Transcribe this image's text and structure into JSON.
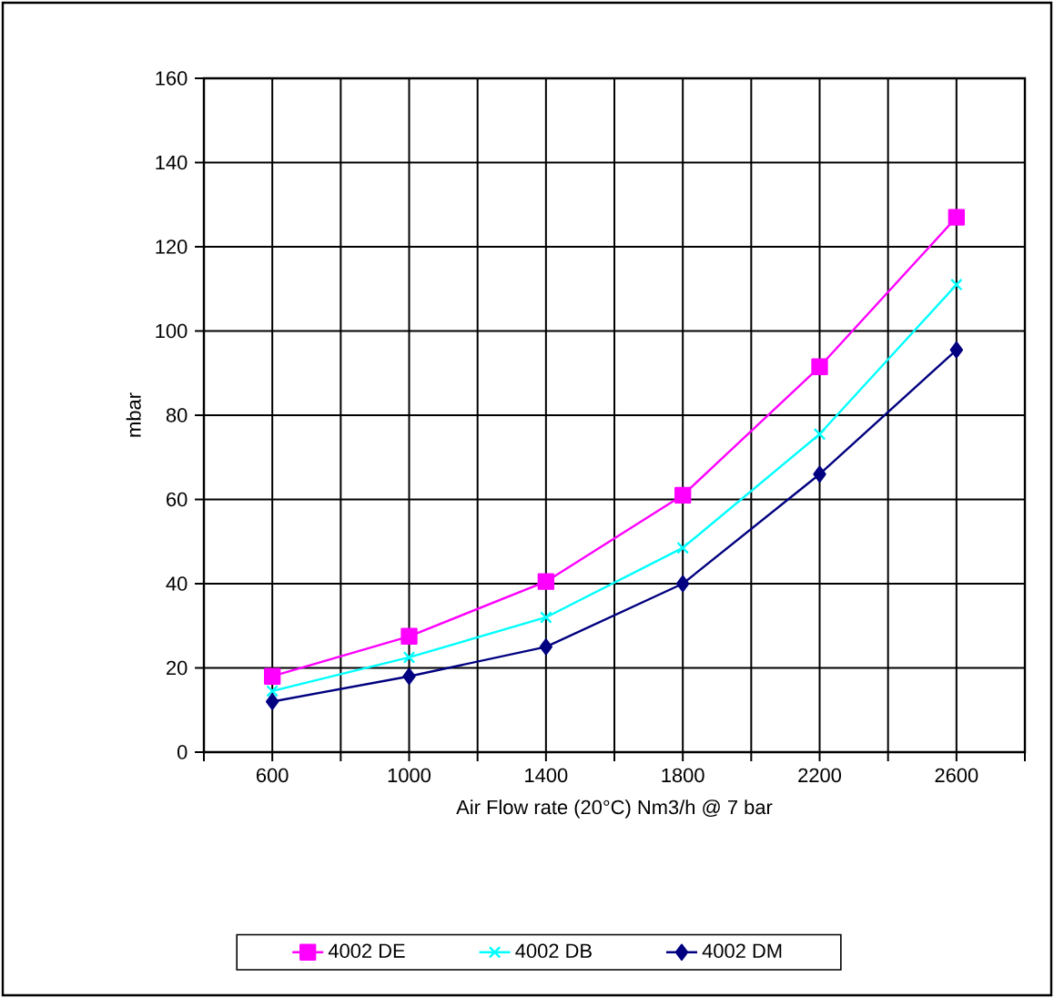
{
  "chart_data": {
    "type": "line",
    "xlabel": "Air Flow rate (20°C) Nm3/h @ 7 bar",
    "ylabel": "mbar",
    "x": [
      600,
      1000,
      1400,
      1800,
      2200,
      2600
    ],
    "series": [
      {
        "name": "4002 DE",
        "color": "#ff00ff",
        "marker": "square",
        "values": [
          18,
          27.5,
          40.5,
          61,
          91.5,
          127
        ]
      },
      {
        "name": "4002 DB",
        "color": "#00ffff",
        "marker": "cross",
        "values": [
          14.5,
          22.5,
          32,
          48.5,
          75.5,
          111
        ]
      },
      {
        "name": "4002 DM",
        "color": "#000080",
        "marker": "diamond",
        "values": [
          12,
          18,
          25,
          40,
          66,
          95.5
        ]
      }
    ],
    "xlim": [
      400,
      2800
    ],
    "xticks": [
      {
        "value": 400,
        "label": null
      },
      600,
      {
        "value": 800,
        "label": null
      },
      1000,
      {
        "value": 1200,
        "label": null
      },
      1400,
      {
        "value": 1600,
        "label": null
      },
      1800,
      {
        "value": 2000,
        "label": null
      },
      2200,
      {
        "value": 2400,
        "label": null
      },
      2600,
      {
        "value": 2800,
        "label": null
      }
    ],
    "ylim": [
      0,
      160
    ],
    "yticks": [
      0,
      20,
      40,
      60,
      80,
      100,
      120,
      140,
      160
    ],
    "grid": true,
    "legend": "bottom",
    "line_style": "solid"
  }
}
